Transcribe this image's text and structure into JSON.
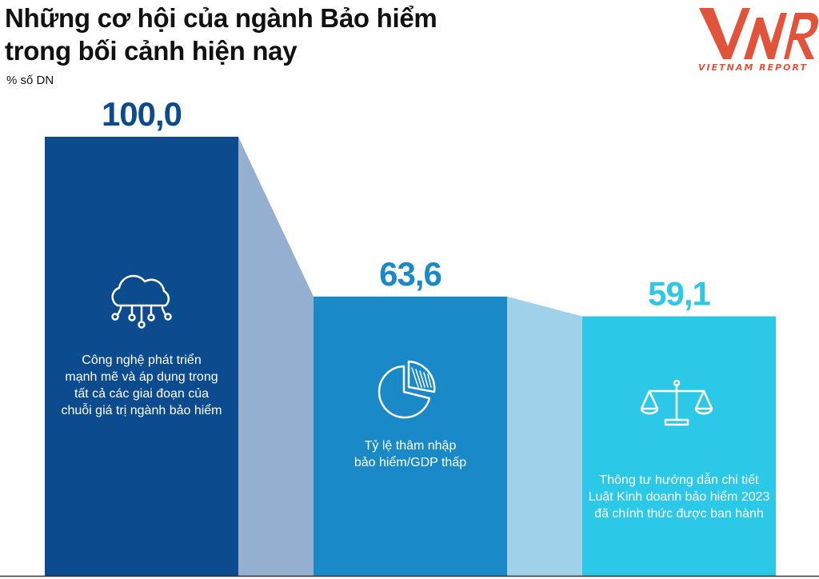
{
  "title_line1": "Những cơ hội của ngành Bảo hiểm",
  "title_line2": "trong bối cảnh hiện nay",
  "unit": "% số DN",
  "logo": {
    "brand": "VNR",
    "text": "VIETNAM REPORT",
    "color": "#e2533b"
  },
  "chart_data": {
    "type": "bar",
    "title": "Những cơ hội của ngành Bảo hiểm trong bối cảnh hiện nay",
    "ylabel": "% số DN",
    "ylim": [
      0,
      100
    ],
    "grid": false,
    "categories": [
      "Công nghệ phát triển mạnh mẽ và áp dụng trong tất cả các giai đoạn của chuỗi giá trị ngành bảo hiểm",
      "Tỷ lệ thâm nhập bảo hiểm/GDP thấp",
      "Thông tư hướng dẫn chi tiết Luật Kinh doanh bảo hiểm 2023 đã chính thức được ban hành"
    ],
    "values": [
      100.0,
      63.6,
      59.1
    ],
    "value_labels": [
      "100,0",
      "63,6",
      "59,1"
    ],
    "colors": [
      "#0c4b8e",
      "#1a89c8",
      "#2cc8e8"
    ],
    "connector_colors": [
      "#94afd0",
      "#9fd2ea"
    ],
    "icons": [
      "cloud-network-icon",
      "pie-chart-icon",
      "scales-icon"
    ],
    "bars": [
      {
        "lines": [
          "Công nghệ phát triển",
          "mạnh mẽ và áp dụng trong",
          "tất cả các giai đoạn của",
          "chuỗi giá trị ngành bảo hiểm"
        ]
      },
      {
        "lines": [
          "Tỷ lệ thâm nhập",
          "bảo hiểm/GDP thấp"
        ]
      },
      {
        "lines": [
          "Thông tư hướng dẫn chi tiết",
          "Luật Kinh doanh bảo hiểm 2023",
          "đã chính thức được ban hành"
        ]
      }
    ]
  }
}
